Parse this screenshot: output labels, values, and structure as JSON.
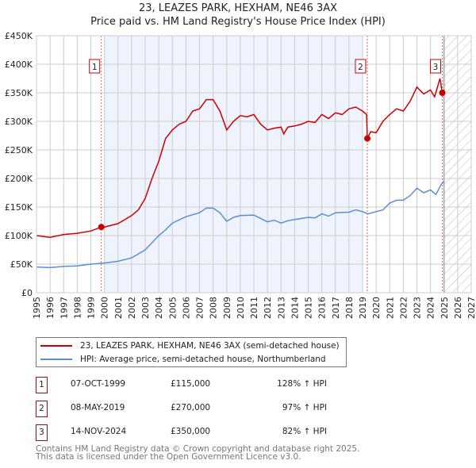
{
  "chart_data": {
    "type": "line",
    "title": "23, LEAZES PARK, HEXHAM, NE46 3AX",
    "subtitle": "Price paid vs. HM Land Registry's House Price Index (HPI)",
    "xlim": [
      1995,
      2027
    ],
    "ylim": [
      0,
      450000
    ],
    "yticks": [
      {
        "v": 0,
        "label": "£0"
      },
      {
        "v": 50000,
        "label": "£50K"
      },
      {
        "v": 100000,
        "label": "£100K"
      },
      {
        "v": 150000,
        "label": "£150K"
      },
      {
        "v": 200000,
        "label": "£200K"
      },
      {
        "v": 250000,
        "label": "£250K"
      },
      {
        "v": 300000,
        "label": "£300K"
      },
      {
        "v": 350000,
        "label": "£350K"
      },
      {
        "v": 400000,
        "label": "£400K"
      },
      {
        "v": 450000,
        "label": "£450K"
      }
    ],
    "xticks": [
      "1995",
      "1996",
      "1997",
      "1998",
      "1999",
      "2000",
      "2001",
      "2002",
      "2003",
      "2004",
      "2005",
      "2006",
      "2007",
      "2008",
      "2009",
      "2010",
      "2011",
      "2012",
      "2013",
      "2014",
      "2015",
      "2016",
      "2017",
      "2018",
      "2019",
      "2020",
      "2021",
      "2022",
      "2023",
      "2024",
      "2025",
      "2026",
      "2027"
    ],
    "grid": true,
    "shaded_period": [
      2000,
      2019
    ],
    "forecast_hatch_from": 2025,
    "series": [
      {
        "name": "23, LEAZES PARK, HEXHAM, NE46 3AX (semi-detached house)",
        "color": "#cc0000",
        "x": [
          1995,
          1996,
          1997,
          1998,
          1999,
          1999.77,
          2000,
          2001,
          2002,
          2002.5,
          2003,
          2003.5,
          2004,
          2004.5,
          2005,
          2005.5,
          2006,
          2006.5,
          2007,
          2007.5,
          2008,
          2008.5,
          2009,
          2009.5,
          2010,
          2010.5,
          2011,
          2011.5,
          2012,
          2012.5,
          2013,
          2013.2,
          2013.5,
          2014,
          2014.5,
          2015,
          2015.5,
          2016,
          2016.5,
          2017,
          2017.5,
          2018,
          2018.5,
          2019,
          2019.3,
          2019.35,
          2019.6,
          2020,
          2020.5,
          2021,
          2021.5,
          2022,
          2022.5,
          2023,
          2023.5,
          2024,
          2024.3,
          2024.7,
          2024.87,
          2025
        ],
        "y": [
          100000,
          97000,
          102000,
          104000,
          108000,
          115000,
          115000,
          121000,
          135000,
          145000,
          165000,
          200000,
          230000,
          270000,
          285000,
          295000,
          300000,
          318000,
          322000,
          338000,
          338000,
          318000,
          285000,
          300000,
          310000,
          308000,
          312000,
          295000,
          285000,
          288000,
          290000,
          278000,
          290000,
          292000,
          295000,
          300000,
          298000,
          312000,
          305000,
          315000,
          312000,
          322000,
          325000,
          318000,
          312000,
          270000,
          282000,
          280000,
          300000,
          312000,
          322000,
          318000,
          335000,
          360000,
          348000,
          355000,
          343000,
          375000,
          350000,
          355000
        ]
      },
      {
        "name": "HPI: Average price, semi-detached house, Northumberland",
        "color": "#5b8fd4",
        "x": [
          1995,
          1996,
          1997,
          1998,
          1999,
          2000,
          2001,
          2002,
          2003,
          2004,
          2004.5,
          2005,
          2006,
          2007,
          2007.5,
          2008,
          2008.5,
          2009,
          2009.5,
          2010,
          2011,
          2011.5,
          2012,
          2012.5,
          2013,
          2013.5,
          2014,
          2015,
          2015.5,
          2016,
          2016.5,
          2017,
          2018,
          2018.5,
          2019,
          2019.4,
          2020,
          2020.5,
          2021,
          2021.5,
          2022,
          2022.5,
          2023,
          2023.5,
          2024,
          2024.4,
          2024.8,
          2025
        ],
        "y": [
          45000,
          44000,
          46000,
          47000,
          50000,
          52000,
          55000,
          61000,
          75000,
          100000,
          110000,
          122000,
          133000,
          140000,
          148000,
          148000,
          140000,
          125000,
          132000,
          135000,
          136000,
          130000,
          124000,
          127000,
          122000,
          126000,
          128000,
          132000,
          131000,
          138000,
          134000,
          140000,
          141000,
          145000,
          142000,
          138000,
          142000,
          145000,
          157000,
          162000,
          162000,
          170000,
          183000,
          175000,
          180000,
          172000,
          190000,
          195000
        ]
      }
    ],
    "sales": [
      {
        "num": "1",
        "date": "07-OCT-1999",
        "price": "£115,000",
        "hpi": "128% ↑ HPI",
        "x": 1999.77,
        "y": 115000
      },
      {
        "num": "2",
        "date": "08-MAY-2019",
        "price": "£270,000",
        "hpi": "97% ↑ HPI",
        "x": 2019.35,
        "y": 270000
      },
      {
        "num": "3",
        "date": "14-NOV-2024",
        "price": "£350,000",
        "hpi": "82% ↑ HPI",
        "x": 2024.87,
        "y": 350000
      }
    ],
    "legend_position": "below"
  },
  "footer": {
    "line1": "Contains HM Land Registry data © Crown copyright and database right 2025.",
    "line2": "This data is licensed under the Open Government Licence v3.0."
  }
}
